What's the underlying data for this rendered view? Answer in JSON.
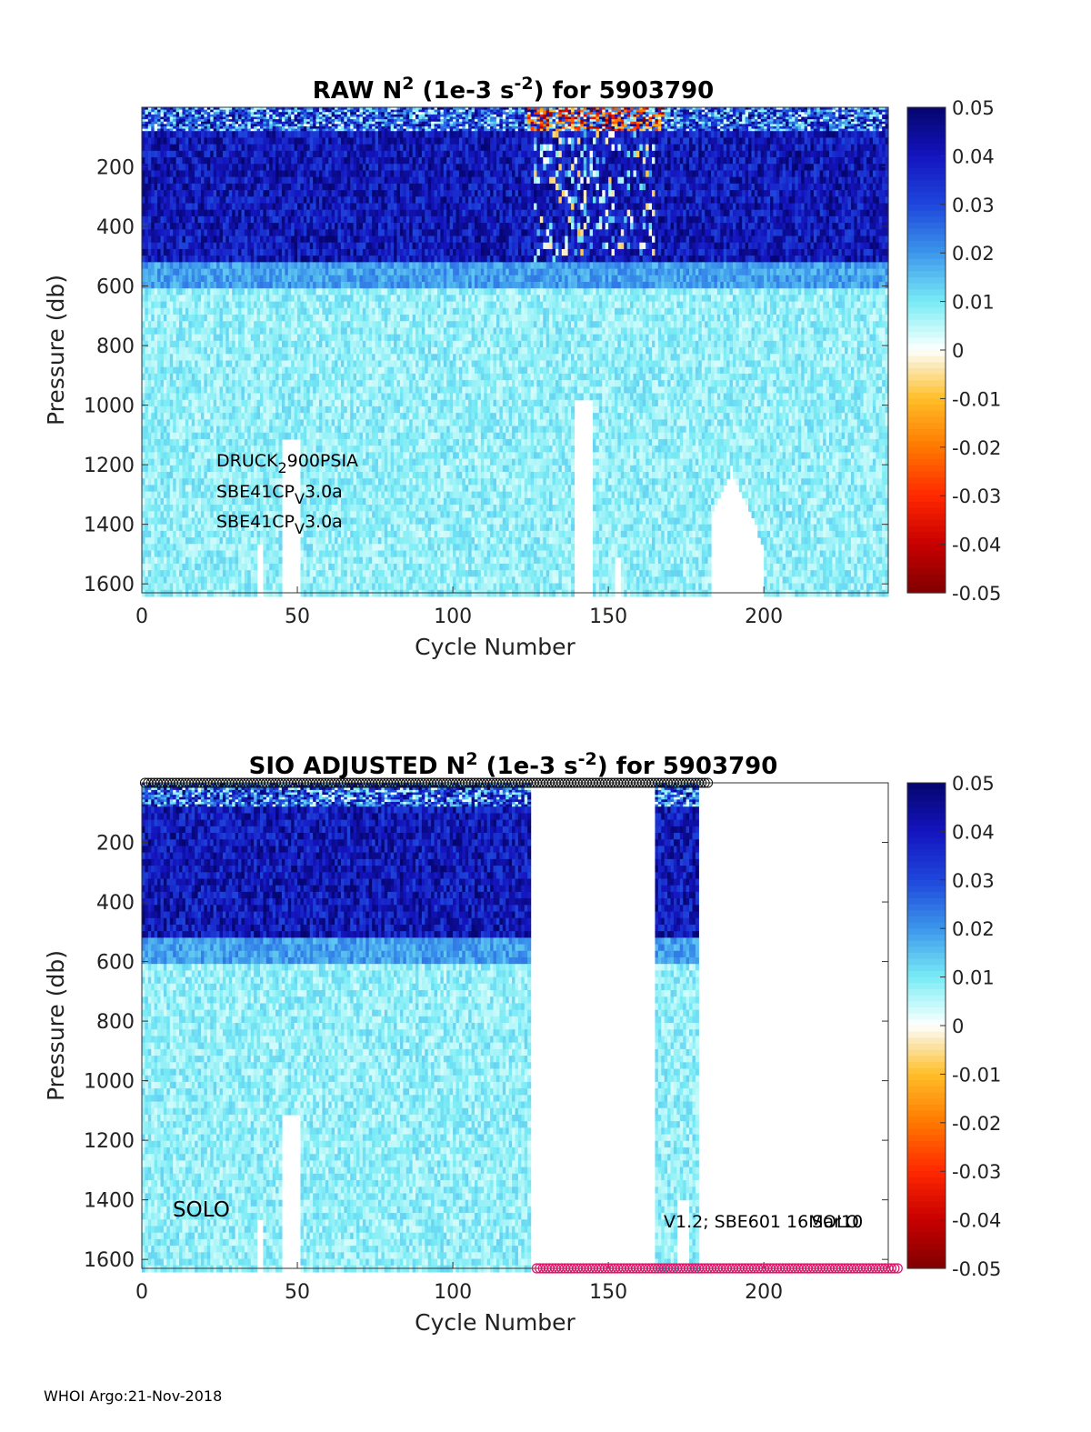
{
  "footer": "WHOI Argo:21-Nov-2018",
  "colorbar": {
    "ticks": [
      "0.05",
      "0.04",
      "0.03",
      "0.02",
      "0.01",
      "0",
      "-0.01",
      "-0.02",
      "-0.03",
      "-0.04",
      "-0.05"
    ],
    "range": [
      -0.05,
      0.05
    ]
  },
  "chart_data": [
    {
      "type": "heatmap",
      "title_parts": [
        "RAW N",
        "2",
        " (1e-3 s",
        "-2",
        ") for 5903790"
      ],
      "xlabel": "Cycle Number",
      "ylabel": "Pressure (db)",
      "xlim": [
        0,
        240
      ],
      "ylim": [
        0,
        1630
      ],
      "y_reversed": true,
      "xticks": [
        "0",
        "50",
        "100",
        "150",
        "200"
      ],
      "yticks": [
        "200",
        "400",
        "600",
        "800",
        "1000",
        "1200",
        "1400",
        "1600"
      ],
      "colormap": "jet-like diverging, dark red (-0.05) to white (0) to dark blue (0.05)",
      "pressure_bands_approx": [
        {
          "p_range": [
            0,
            80
          ],
          "value_range": [
            -0.05,
            0.05
          ],
          "note": "noisy near-surface"
        },
        {
          "p_range": [
            80,
            520
          ],
          "value_range": [
            0.03,
            0.05
          ]
        },
        {
          "p_range": [
            520,
            600
          ],
          "value_range": [
            0.015,
            0.025
          ]
        },
        {
          "p_range": [
            600,
            1630
          ],
          "value_range": [
            0.003,
            0.013
          ]
        }
      ],
      "annotations": [
        {
          "parts": [
            "DRUCK",
            "2",
            "900PSIA"
          ]
        },
        {
          "parts": [
            "SBE41CP",
            "V",
            "3.0a"
          ]
        },
        {
          "parts": [
            "SBE41CP",
            "V",
            "3.0a"
          ]
        }
      ]
    },
    {
      "type": "heatmap",
      "title_parts": [
        "SIO  ADJUSTED N",
        "2",
        " (1e-3 s",
        "-2",
        ") for 5903790"
      ],
      "xlabel": "Cycle Number",
      "ylabel": "Pressure (db)",
      "xlim": [
        0,
        240
      ],
      "ylim": [
        0,
        1630
      ],
      "y_reversed": true,
      "xticks": [
        "0",
        "50",
        "100",
        "150",
        "200"
      ],
      "yticks": [
        "200",
        "400",
        "600",
        "800",
        "1000",
        "1200",
        "1400",
        "1600"
      ],
      "data_cycles_present": [
        [
          1,
          125
        ],
        [
          166,
          179
        ]
      ],
      "markers": [
        {
          "style": "open black circles",
          "position": "top",
          "cycles": [
            1,
            182
          ]
        },
        {
          "style": "open magenta circles",
          "position": "bottom",
          "cycles": [
            127,
            243
          ]
        }
      ],
      "annotations": [
        {
          "text": "SOLO"
        },
        {
          "text": "V1.2; SBE601 16Mar10"
        },
        {
          "text": "SOLO"
        }
      ]
    }
  ]
}
